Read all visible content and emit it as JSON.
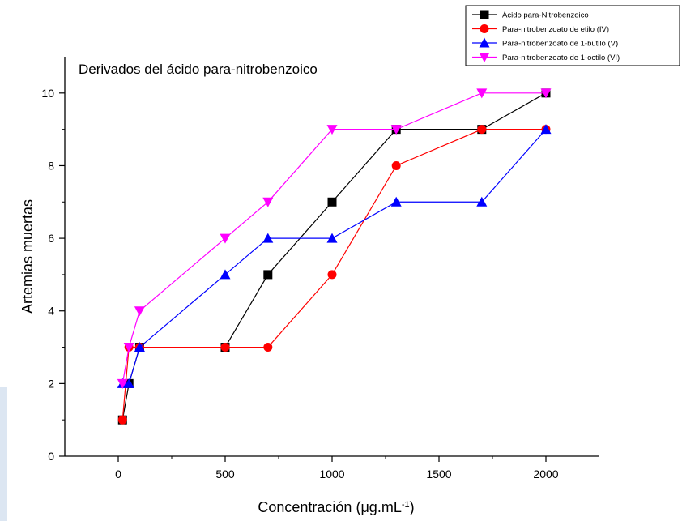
{
  "chart_data": {
    "type": "line",
    "title": "Derivados del ácido para-nitrobenzoico",
    "xlabel": "Concentración (μg.mL",
    "xlabel_superscript": "-1",
    "xlabel_suffix": ")",
    "ylabel": "Artemias muertas",
    "xlim": [
      -250,
      2250
    ],
    "ylim": [
      0,
      11
    ],
    "xticks": [
      0,
      500,
      1000,
      1500,
      2000
    ],
    "yticks": [
      0,
      2,
      4,
      6,
      8,
      10
    ],
    "xtick_labels": [
      "0",
      "500",
      "1000",
      "1500",
      "2000"
    ],
    "ytick_labels": [
      "0",
      "2",
      "4",
      "6",
      "8",
      "10"
    ],
    "legend_position": "top-right",
    "grid": false,
    "series": [
      {
        "name": "Ácido para-Nitrobenzoico",
        "color": "#000000",
        "marker": "square",
        "x": [
          20,
          50,
          100,
          500,
          700,
          1000,
          1300,
          1700,
          2000
        ],
        "y": [
          1,
          2,
          3,
          3,
          5,
          7,
          9,
          9,
          10
        ]
      },
      {
        "name": "Para-nitrobenzoato de etilo (IV)",
        "color": "#ff0000",
        "marker": "circle",
        "x": [
          20,
          50,
          100,
          500,
          700,
          1000,
          1300,
          1700,
          2000
        ],
        "y": [
          1,
          3,
          3,
          3,
          3,
          5,
          8,
          9,
          9
        ]
      },
      {
        "name": "Para-nitrobenzoato de 1-butilo (V)",
        "color": "#0000ff",
        "marker": "triangle-up",
        "x": [
          20,
          50,
          100,
          500,
          700,
          1000,
          1300,
          1700,
          2000
        ],
        "y": [
          2,
          2,
          3,
          5,
          6,
          6,
          7,
          7,
          9
        ]
      },
      {
        "name": "Para-nitrobenzoato de 1-octilo (VI)",
        "color": "#ff00ff",
        "marker": "triangle-down",
        "x": [
          20,
          50,
          100,
          500,
          700,
          1000,
          1300,
          1700,
          2000
        ],
        "y": [
          2,
          3,
          4,
          6,
          7,
          9,
          9,
          10,
          10
        ]
      }
    ]
  }
}
